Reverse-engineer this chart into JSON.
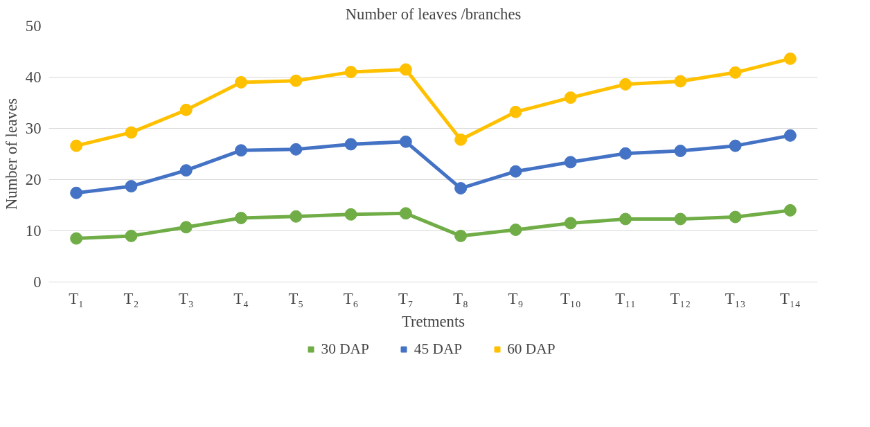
{
  "chart_data": {
    "type": "line",
    "title": "Number of leaves /branches",
    "xlabel": "Tretments",
    "ylabel": "Number of leaves",
    "categories": [
      "T₁",
      "T₂",
      "T₃",
      "T₄",
      "T₅",
      "T₆",
      "T₇",
      "T₈",
      "T₉",
      "T₁₀",
      "T₁₁",
      "T₁₂",
      "T₁₃",
      "T₁₄"
    ],
    "series": [
      {
        "name": "30 DAP",
        "color": "#70ad47",
        "values": [
          8.5,
          9.0,
          10.7,
          12.5,
          12.8,
          13.2,
          13.4,
          9.0,
          10.2,
          11.5,
          12.3,
          12.3,
          12.7,
          14.0
        ]
      },
      {
        "name": "45 DAP",
        "color": "#4472c4",
        "values": [
          17.4,
          18.7,
          21.8,
          25.7,
          25.9,
          26.9,
          27.4,
          18.3,
          21.6,
          23.4,
          25.1,
          25.6,
          26.6,
          28.6
        ]
      },
      {
        "name": "60 DAP",
        "color": "#ffc000",
        "values": [
          26.6,
          29.2,
          33.6,
          39.0,
          39.3,
          41.0,
          41.5,
          27.8,
          33.2,
          36.0,
          38.6,
          39.2,
          40.9,
          43.6
        ]
      }
    ],
    "ylim": [
      0,
      50
    ],
    "yticks": [
      0,
      10,
      20,
      30,
      40,
      50
    ],
    "grid": "y",
    "legend": "bottom",
    "marker": "circle",
    "line_style": "solid"
  }
}
